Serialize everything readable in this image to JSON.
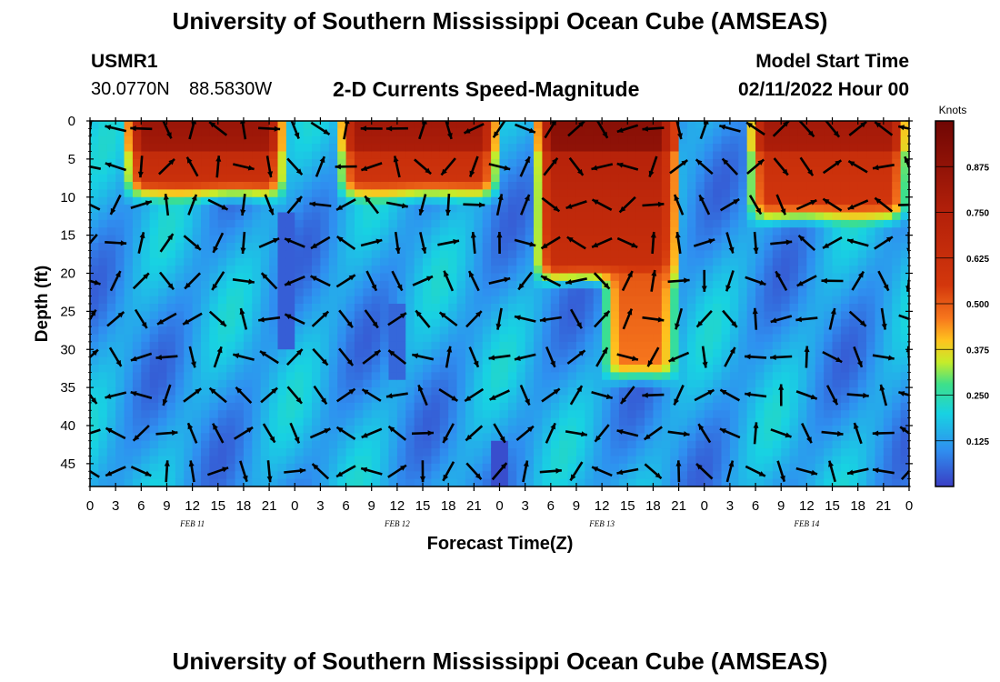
{
  "title": "University of Southern Mississippi Ocean Cube (AMSEAS)",
  "station": {
    "id": "USMR1",
    "lat": "30.0770N",
    "lon": "88.5830W"
  },
  "plot_title": "2-D Currents Speed-Magnitude",
  "model_start": {
    "label": "Model Start Time",
    "value": "02/11/2022 Hour 00"
  },
  "footer_title": "University of Southern Mississippi Ocean Cube (AMSEAS)",
  "chart_data": {
    "type": "heatmap",
    "title": "2-D Currents Speed-Magnitude",
    "xlabel": "Forecast Time(Z)",
    "ylabel": "Depth (ft)",
    "x_ticks": [
      "0",
      "3",
      "6",
      "9",
      "12",
      "15",
      "18",
      "21",
      "0",
      "3",
      "6",
      "9",
      "12",
      "15",
      "18",
      "21",
      "0",
      "3",
      "6",
      "9",
      "12",
      "15",
      "18",
      "21",
      "0",
      "3",
      "6",
      "9",
      "12",
      "15",
      "18",
      "21",
      "0"
    ],
    "x_range_hours": [
      0,
      96
    ],
    "day_labels": [
      {
        "label": "FEB 11",
        "hour": 12
      },
      {
        "label": "FEB 12",
        "hour": 36
      },
      {
        "label": "FEB 13",
        "hour": 60
      },
      {
        "label": "FEB 14",
        "hour": 84
      }
    ],
    "y_ticks": [
      0,
      5,
      10,
      15,
      20,
      25,
      30,
      35,
      40,
      45
    ],
    "y_range_ft": [
      0,
      48
    ],
    "colorbar": {
      "label": "Knots",
      "ticks": [
        "0.125",
        "0.250",
        "0.375",
        "0.500",
        "0.625",
        "0.750",
        "0.875"
      ],
      "range": [
        0,
        1.0
      ]
    },
    "colors": {
      "c0": "#3a3ec4",
      "c1": "#2f8ff0",
      "c2": "#18d2e2",
      "c3": "#3ee08a",
      "c4": "#c6ec2a",
      "c5": "#ffc21e",
      "c6": "#f7771d",
      "c7": "#d3370c",
      "c8": "#b3200a",
      "c9": "#700604"
    }
  }
}
